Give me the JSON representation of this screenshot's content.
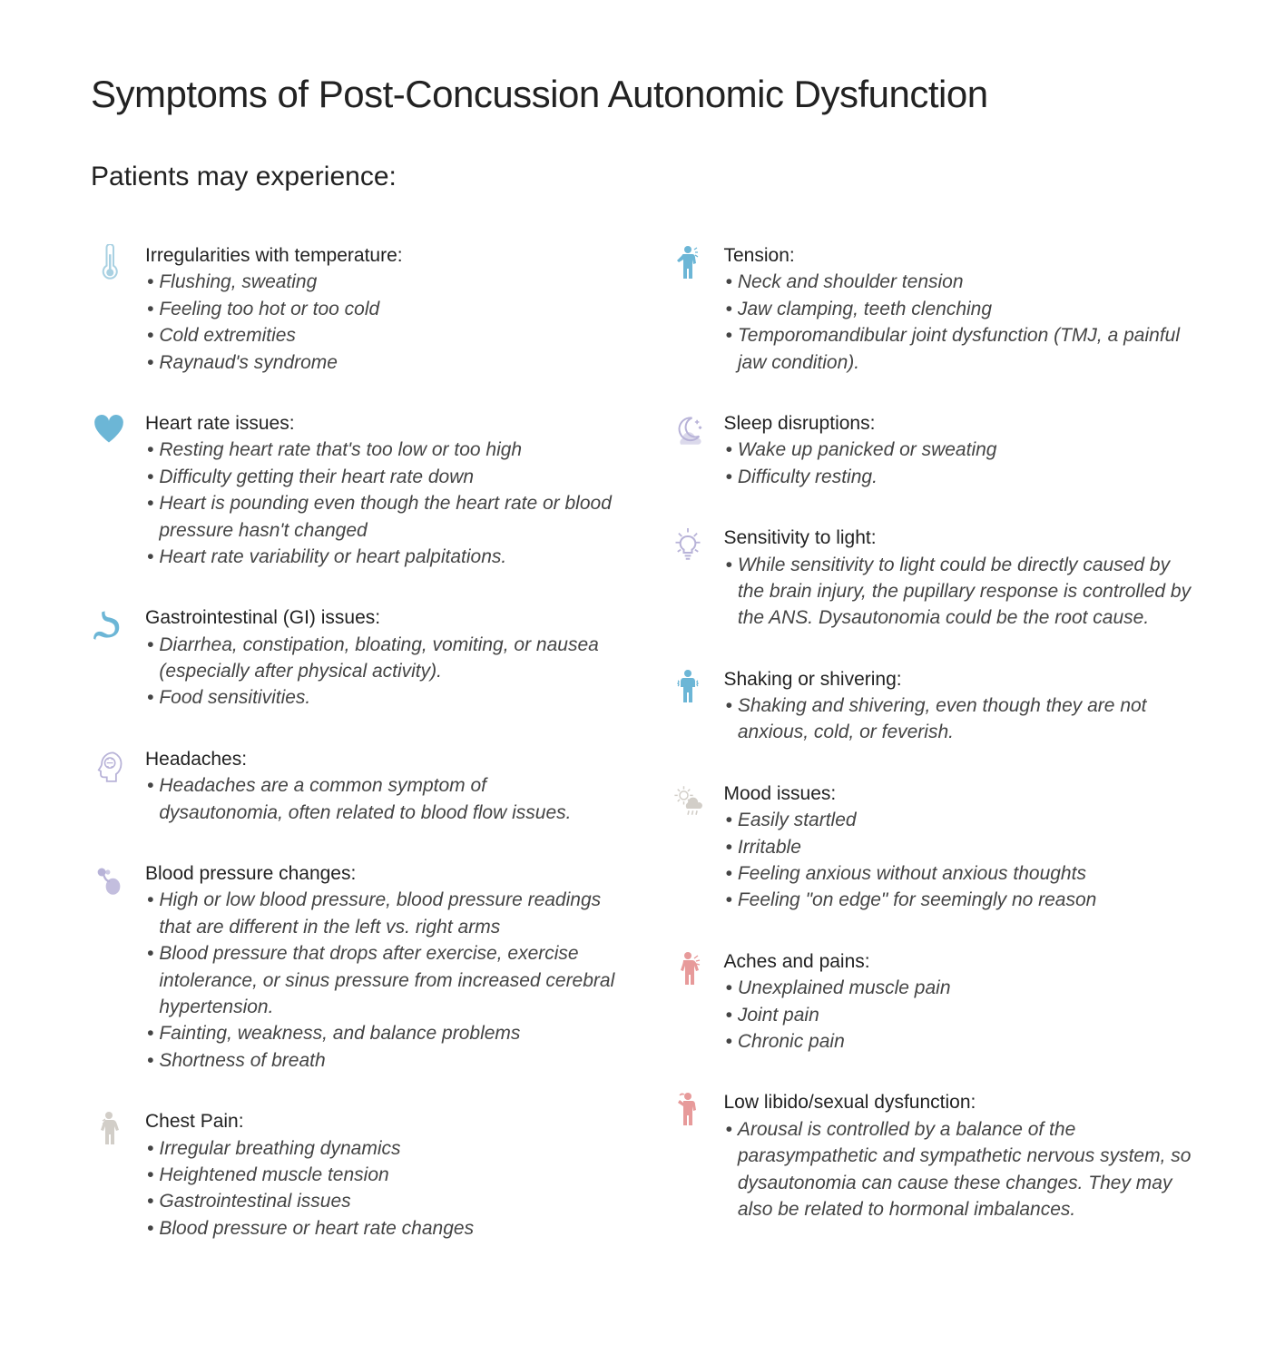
{
  "title": "Symptoms of Post-Concussion Autonomic Dysfunction",
  "subtitle": "Patients may experience:",
  "colors": {
    "blue": "#7fc2da",
    "blue_solid": "#6cb6d6",
    "lavender": "#b8b3d8",
    "pink": "#e79a9a",
    "grey": "#d2cec8"
  },
  "left": [
    {
      "icon": "thermometer",
      "icon_color": "#a9d1e2",
      "heading": "Irregularities with temperature:",
      "items": [
        "Flushing, sweating",
        "Feeling too hot or too cold",
        "Cold extremities",
        "Raynaud's syndrome"
      ]
    },
    {
      "icon": "heart",
      "icon_color": "#6cb6d6",
      "heading": "Heart rate issues:",
      "items": [
        "Resting heart rate that's too low or too high",
        "Difficulty getting their heart rate down",
        "Heart is pounding even though the heart rate or blood pressure hasn't changed",
        "Heart rate variability or heart palpitations."
      ]
    },
    {
      "icon": "stomach",
      "icon_color": "#6cb6d6",
      "heading": "Gastrointestinal (GI) issues:",
      "items": [
        "Diarrhea, constipation, bloating, vomiting, or nausea (especially after physical activity).",
        "Food sensitivities."
      ]
    },
    {
      "icon": "head-brain",
      "icon_color": "#b8b3d8",
      "heading": "Headaches:",
      "items": [
        "Headaches are a common symptom of dysautonomia, often related to blood flow issues."
      ]
    },
    {
      "icon": "bp-cuff",
      "icon_color": "#b8b3d8",
      "heading": "Blood pressure changes:",
      "items": [
        "High or low blood pressure, blood pressure readings that are different in the left vs. right arms",
        "Blood pressure that drops after exercise, exercise intolerance, or sinus pressure from increased cerebral hypertension.",
        "Fainting, weakness, and balance problems",
        "Shortness of breath"
      ]
    },
    {
      "icon": "person-chest",
      "icon_color": "#d2cec8",
      "heading": "Chest Pain:",
      "items": [
        " Irregular breathing dynamics",
        "Heightened muscle tension",
        "Gastrointestinal issues",
        "Blood pressure or heart rate changes"
      ]
    }
  ],
  "right": [
    {
      "icon": "person-tension",
      "icon_color": "#6cb6d6",
      "heading": "Tension:",
      "items": [
        "Neck and shoulder tension",
        "Jaw clamping, teeth clenching",
        "Temporomandibular joint dysfunction (TMJ, a painful jaw condition)."
      ]
    },
    {
      "icon": "moon-sleep",
      "icon_color": "#b8b3d8",
      "heading": "Sleep disruptions:",
      "items": [
        "Wake up panicked or sweating",
        "Difficulty resting."
      ]
    },
    {
      "icon": "lightbulb",
      "icon_color": "#b8b3d8",
      "heading": "Sensitivity to light:",
      "items": [
        "While sensitivity to light could be directly caused by the brain injury, the pupillary response is controlled by the ANS. Dysautonomia could be the root cause."
      ]
    },
    {
      "icon": "person-shiver",
      "icon_color": "#6cb6d6",
      "heading": "Shaking or shivering:",
      "items": [
        "Shaking and shivering, even though they are not anxious, cold, or feverish."
      ]
    },
    {
      "icon": "weather",
      "icon_color": "#d2cec8",
      "heading": "Mood issues:",
      "items": [
        "Easily startled",
        "Irritable",
        "Feeling anxious without anxious thoughts",
        "Feeling \"on edge\" for seemingly no reason"
      ]
    },
    {
      "icon": "person-pain",
      "icon_color": "#e79a9a",
      "heading": "Aches and pains:",
      "items": [
        "Unexplained muscle pain",
        "Joint pain",
        "Chronic pain"
      ]
    },
    {
      "icon": "person-libido",
      "icon_color": "#e79a9a",
      "heading": "Low libido/sexual dysfunction:",
      "items": [
        "Arousal is controlled by a balance of the parasympathetic and sympathetic nervous system, so dysautonomia can cause these changes. They may also be related to hormonal imbalances."
      ]
    }
  ]
}
